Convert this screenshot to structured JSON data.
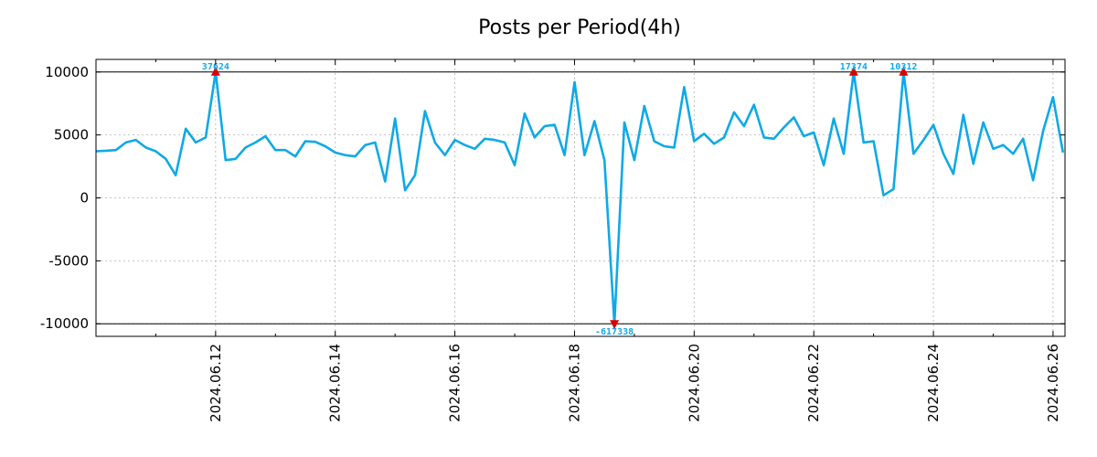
{
  "chart_data": {
    "type": "line",
    "title": "Posts per Period(4h)",
    "xlabel": "",
    "ylabel": "",
    "ylim": [
      -11000,
      11000
    ],
    "yticks": [
      10000,
      5000,
      0,
      -5000,
      -10000
    ],
    "ytick_labels": [
      "10000",
      "5000",
      "0",
      "-5000",
      "-10000"
    ],
    "reference_lines": [
      10000,
      -10000
    ],
    "grid": true,
    "x_start_day": 0,
    "x_step_days": 0.16667,
    "xlim_days": [
      0,
      16.2
    ],
    "x_tick_days": [
      2,
      4,
      6,
      8,
      10,
      12,
      14,
      16
    ],
    "x_tick_labels": [
      "2024.06.12",
      "2024.06.14",
      "2024.06.16",
      "2024.06.18",
      "2024.06.20",
      "2024.06.22",
      "2024.06.24",
      "2024.06.26"
    ],
    "x_minor_tick_days": [
      1,
      3,
      5,
      7,
      9,
      11,
      13,
      15
    ],
    "series": [
      {
        "name": "posts",
        "color": "#0fa9e6",
        "values": [
          3700,
          3750,
          3800,
          4400,
          4600,
          4000,
          3700,
          3100,
          1800,
          5500,
          4400,
          4800,
          10000,
          3000,
          3100,
          4000,
          4400,
          4900,
          3800,
          3800,
          3300,
          4500,
          4450,
          4100,
          3600,
          3400,
          3300,
          4200,
          4400,
          1300,
          6300,
          600,
          1800,
          6900,
          4400,
          3400,
          4600,
          4200,
          3900,
          4700,
          4600,
          4400,
          2600,
          6700,
          4800,
          5700,
          5800,
          3400,
          9200,
          3400,
          6100,
          3000,
          -10000,
          6000,
          3000,
          7300,
          4500,
          4100,
          4000,
          8800,
          4500,
          5100,
          4300,
          4800,
          6800,
          5700,
          7400,
          4800,
          4700,
          5600,
          6400,
          4900,
          5200,
          2600,
          6300,
          3500,
          10000,
          4400,
          4500,
          200,
          700,
          10000,
          3500,
          4600,
          5800,
          3500,
          1900,
          6600,
          2700,
          6000,
          3900,
          4200,
          3500,
          4700,
          1400,
          5300,
          8000,
          3600
        ]
      }
    ],
    "markers": [
      {
        "label": "37624",
        "index": 12,
        "value": 10000,
        "direction": "up",
        "color": "#dd0000",
        "label_color": "#0fa9e6"
      },
      {
        "label": "-617338",
        "index": 52,
        "value": -10000,
        "direction": "down",
        "color": "#dd0000",
        "label_color": "#0fa9e6"
      },
      {
        "label": "17374",
        "index": 76,
        "value": 10000,
        "direction": "up",
        "color": "#dd0000",
        "label_color": "#0fa9e6"
      },
      {
        "label": "10312",
        "index": 81,
        "value": 10000,
        "direction": "up",
        "color": "#dd0000",
        "label_color": "#0fa9e6"
      }
    ]
  }
}
